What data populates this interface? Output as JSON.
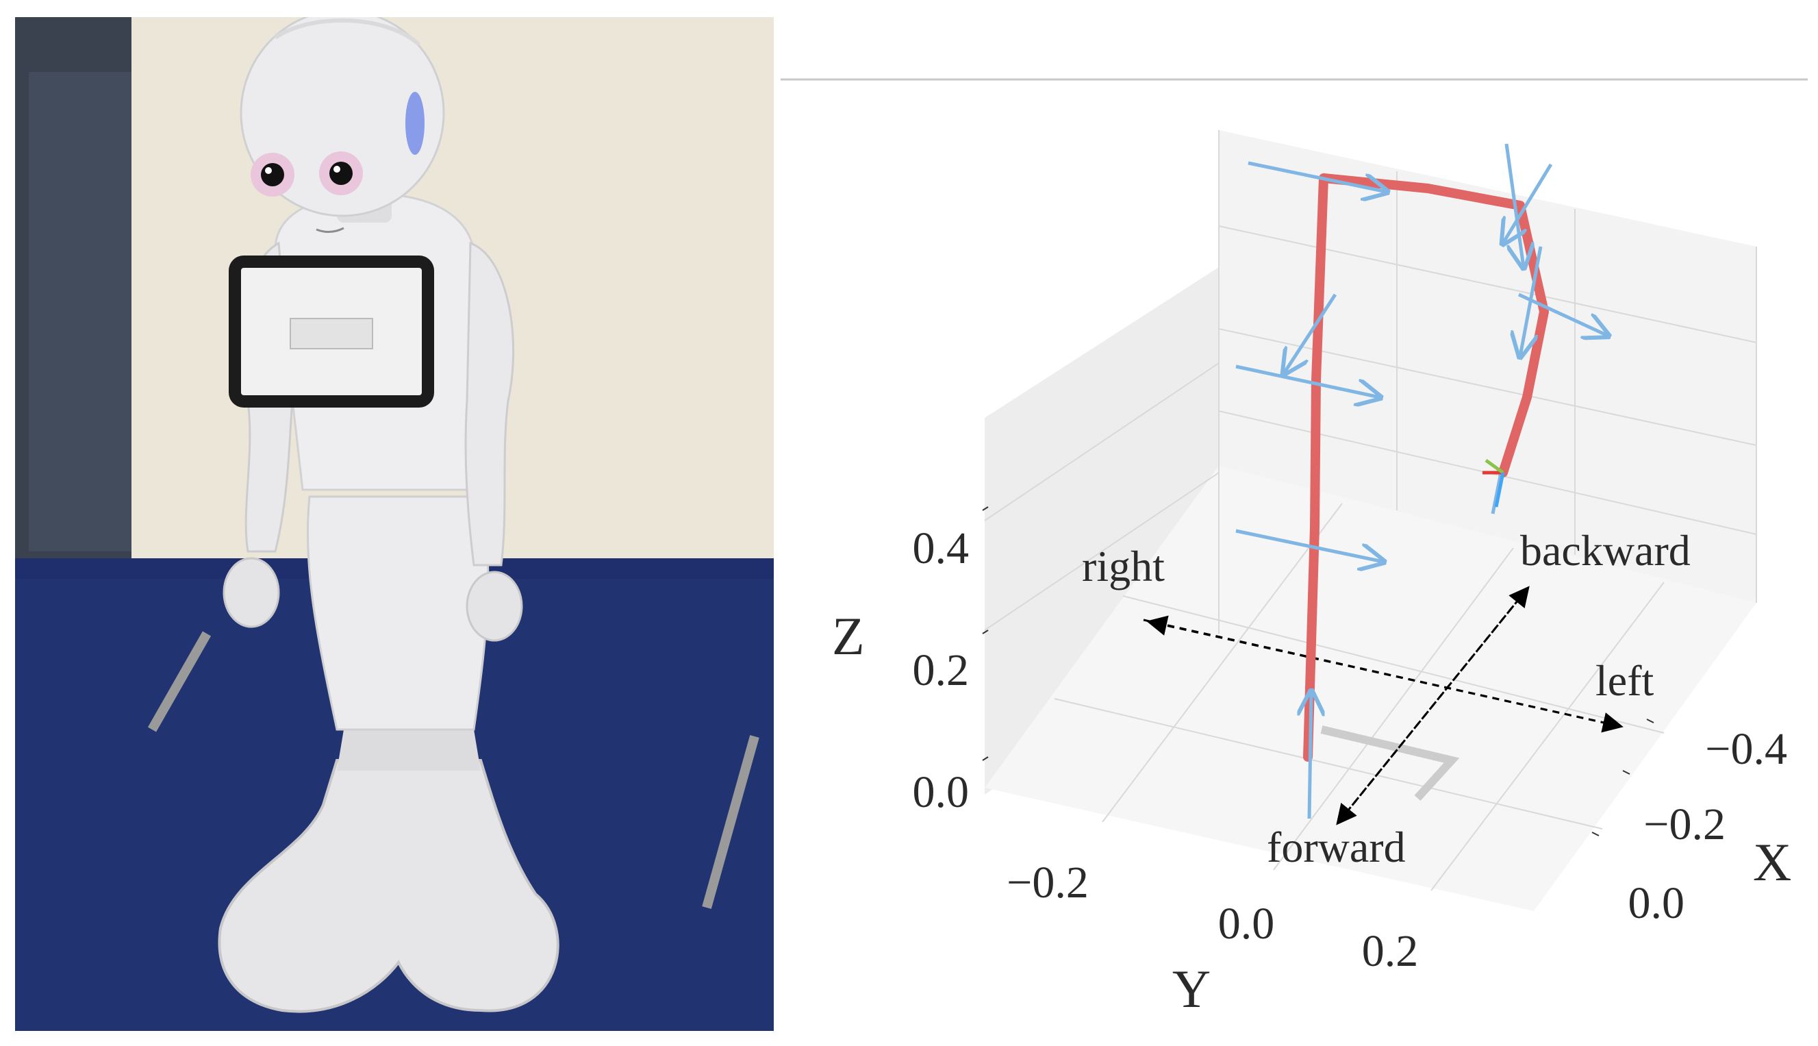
{
  "photo": {
    "subject": "humanoid service robot",
    "colors": {
      "body": "#e9e9eb",
      "floor": "#1f2f6d",
      "wall": "#ece6d8",
      "screen_bezel": "#1c1c1c",
      "screen": "#f1f1f1",
      "eye": "#e9c6dc"
    }
  },
  "plot": {
    "axes": {
      "x": {
        "label": "X",
        "ticks": [
          "−0.4",
          "−0.2",
          "0.0"
        ]
      },
      "y": {
        "label": "Y",
        "ticks": [
          "−0.2",
          "0.0",
          "0.2"
        ]
      },
      "z": {
        "label": "Z",
        "ticks": [
          "0.4",
          "0.2",
          "0.0"
        ]
      }
    },
    "directions": {
      "right": "right",
      "left": "left",
      "forward": "forward",
      "backward": "backward"
    },
    "colors": {
      "skeleton": "#e06666",
      "frame_arrow": "#7fb6e3",
      "pane": "#f0f0f0",
      "grid": "#d6d6d6",
      "direction_arrow": "#000000"
    }
  }
}
